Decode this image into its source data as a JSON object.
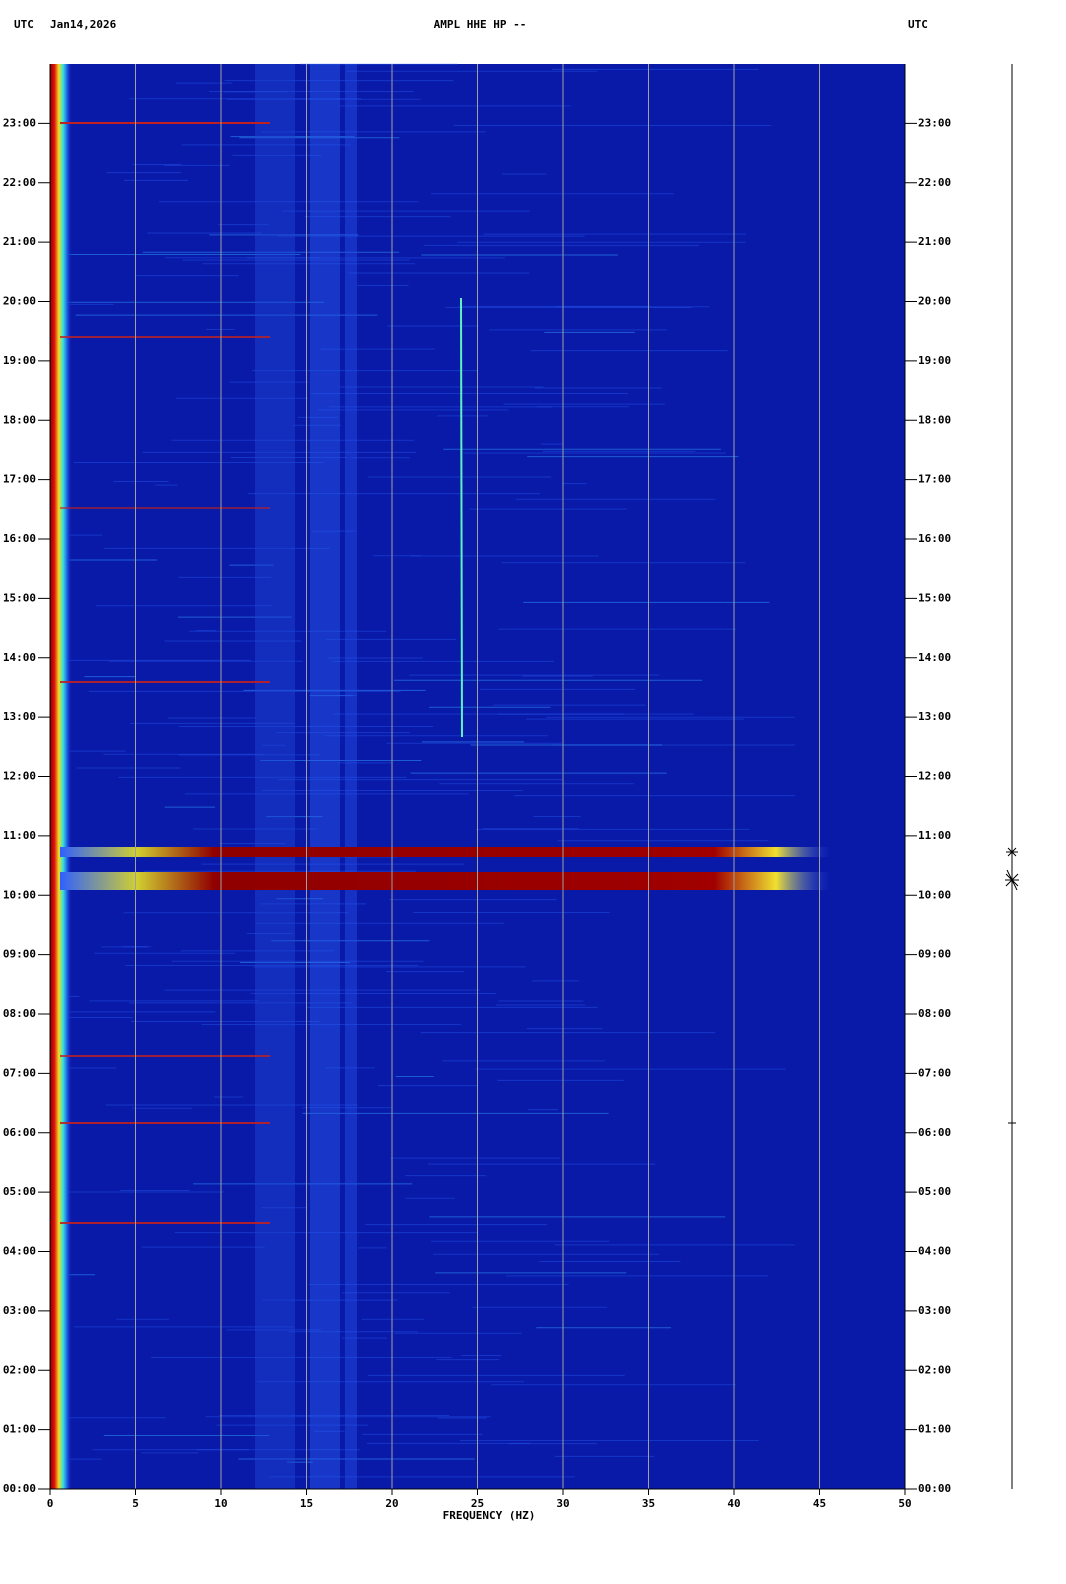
{
  "chart_data": {
    "type": "spectrogram",
    "title": "AMPL HHE HP --",
    "timezone_left": "UTC",
    "date": "Jan14,2026",
    "timezone_right": "UTC",
    "x_label": "FREQUENCY (HZ)",
    "xlim": [
      0,
      50
    ],
    "xticks": [
      0,
      5,
      10,
      15,
      20,
      25,
      30,
      35,
      40,
      45,
      50
    ],
    "ylim": [
      0,
      24
    ],
    "yticks": [
      {
        "value": 0,
        "label": "00:00"
      },
      {
        "value": 1,
        "label": "01:00"
      },
      {
        "value": 2,
        "label": "02:00"
      },
      {
        "value": 3,
        "label": "03:00"
      },
      {
        "value": 4,
        "label": "04:00"
      },
      {
        "value": 5,
        "label": "05:00"
      },
      {
        "value": 6,
        "label": "06:00"
      },
      {
        "value": 7,
        "label": "07:00"
      },
      {
        "value": 8,
        "label": "08:00"
      },
      {
        "value": 9,
        "label": "09:00"
      },
      {
        "value": 10,
        "label": "10:00"
      },
      {
        "value": 11,
        "label": "11:00"
      },
      {
        "value": 12,
        "label": "12:00"
      },
      {
        "value": 13,
        "label": "13:00"
      },
      {
        "value": 14,
        "label": "14:00"
      },
      {
        "value": 15,
        "label": "15:00"
      },
      {
        "value": 16,
        "label": "16:00"
      },
      {
        "value": 17,
        "label": "17:00"
      },
      {
        "value": 18,
        "label": "18:00"
      },
      {
        "value": 19,
        "label": "19:00"
      },
      {
        "value": 20,
        "label": "20:00"
      },
      {
        "value": 21,
        "label": "21:00"
      },
      {
        "value": 22,
        "label": "22:00"
      },
      {
        "value": 23,
        "label": "23:00"
      }
    ],
    "grid": true,
    "background_color": "#0a1aa8"
  }
}
